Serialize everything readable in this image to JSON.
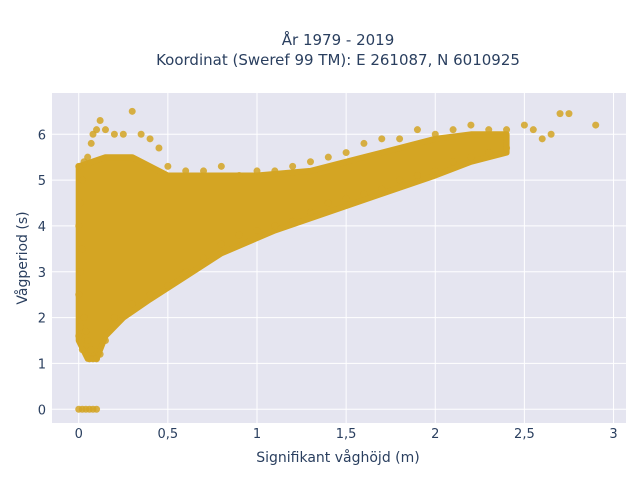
{
  "chart_data": {
    "type": "scatter",
    "title_lines": [
      "År 1979 - 2019",
      "Koordinat (Sweref 99 TM): E 261087, N 6010925"
    ],
    "xlabel": "Signifikant våghöjd (m)",
    "ylabel": "Vågperiod (s)",
    "xlim": [
      -0.15,
      3.07
    ],
    "ylim": [
      -0.3,
      6.9
    ],
    "x_ticks": [
      0,
      0.5,
      1,
      1.5,
      2,
      2.5,
      3
    ],
    "x_tick_labels": [
      "0",
      "0,5",
      "1",
      "1,5",
      "2",
      "2,5",
      "3"
    ],
    "y_ticks": [
      0,
      1,
      2,
      3,
      4,
      5,
      6
    ],
    "y_tick_labels": [
      "0",
      "1",
      "2",
      "3",
      "4",
      "5",
      "6"
    ],
    "grid": true,
    "plot_background": "#e5e5f0",
    "marker_color": "#d4a523",
    "series": [
      {
        "values_note": "",
        "points": [
          [
            0.0,
            0.0
          ],
          [
            0.02,
            0.0
          ],
          [
            0.04,
            0.0
          ],
          [
            0.06,
            0.0
          ],
          [
            0.08,
            0.0
          ],
          [
            0.1,
            0.0
          ],
          [
            0.0,
            1.6
          ],
          [
            0.01,
            1.8
          ],
          [
            0.02,
            1.3
          ],
          [
            0.03,
            2.0
          ],
          [
            0.04,
            1.7
          ],
          [
            0.05,
            1.5
          ],
          [
            0.06,
            1.1
          ],
          [
            0.07,
            1.3
          ],
          [
            0.08,
            1.1
          ],
          [
            0.1,
            1.1
          ],
          [
            0.12,
            1.2
          ],
          [
            0.15,
            1.5
          ],
          [
            0.0,
            2.5
          ],
          [
            0.01,
            3.0
          ],
          [
            0.02,
            3.5
          ],
          [
            0.0,
            4.0
          ],
          [
            0.01,
            4.5
          ],
          [
            0.02,
            5.0
          ],
          [
            0.0,
            5.3
          ],
          [
            0.03,
            5.4
          ],
          [
            0.05,
            5.5
          ],
          [
            0.07,
            5.8
          ],
          [
            0.08,
            6.0
          ],
          [
            0.1,
            6.1
          ],
          [
            0.12,
            6.3
          ],
          [
            0.15,
            6.1
          ],
          [
            0.2,
            6.0
          ],
          [
            0.25,
            6.0
          ],
          [
            0.3,
            6.5
          ],
          [
            0.35,
            6.0
          ],
          [
            0.4,
            5.9
          ],
          [
            0.45,
            5.7
          ],
          [
            0.5,
            5.3
          ],
          [
            0.6,
            5.2
          ],
          [
            0.7,
            5.2
          ],
          [
            0.8,
            5.3
          ],
          [
            0.9,
            5.1
          ],
          [
            1.0,
            5.2
          ],
          [
            1.1,
            5.2
          ],
          [
            1.2,
            5.3
          ],
          [
            1.3,
            5.4
          ],
          [
            1.4,
            5.5
          ],
          [
            1.5,
            5.6
          ],
          [
            1.6,
            5.8
          ],
          [
            1.7,
            5.9
          ],
          [
            1.8,
            5.9
          ],
          [
            1.9,
            6.1
          ],
          [
            2.0,
            6.0
          ],
          [
            2.1,
            6.1
          ],
          [
            2.2,
            6.2
          ],
          [
            2.3,
            6.1
          ],
          [
            2.4,
            6.1
          ],
          [
            2.5,
            6.2
          ],
          [
            2.55,
            6.1
          ],
          [
            2.6,
            5.9
          ],
          [
            2.65,
            6.0
          ],
          [
            2.7,
            6.45
          ],
          [
            2.75,
            6.45
          ],
          [
            2.9,
            6.2
          ],
          [
            0.2,
            2.0
          ],
          [
            0.3,
            2.3
          ],
          [
            0.4,
            2.5
          ],
          [
            0.5,
            2.7
          ],
          [
            0.6,
            3.0
          ],
          [
            0.7,
            3.3
          ],
          [
            0.8,
            3.6
          ],
          [
            0.9,
            3.8
          ],
          [
            1.0,
            3.9
          ],
          [
            1.1,
            4.0
          ],
          [
            1.2,
            4.1
          ],
          [
            1.3,
            4.3
          ],
          [
            1.4,
            4.5
          ],
          [
            1.5,
            4.6
          ],
          [
            1.6,
            4.7
          ],
          [
            1.7,
            4.8
          ],
          [
            1.8,
            5.0
          ],
          [
            1.9,
            5.1
          ],
          [
            2.0,
            5.2
          ],
          [
            2.1,
            5.4
          ],
          [
            2.2,
            5.5
          ],
          [
            2.3,
            5.6
          ],
          [
            2.4,
            5.7
          ]
        ]
      }
    ]
  }
}
